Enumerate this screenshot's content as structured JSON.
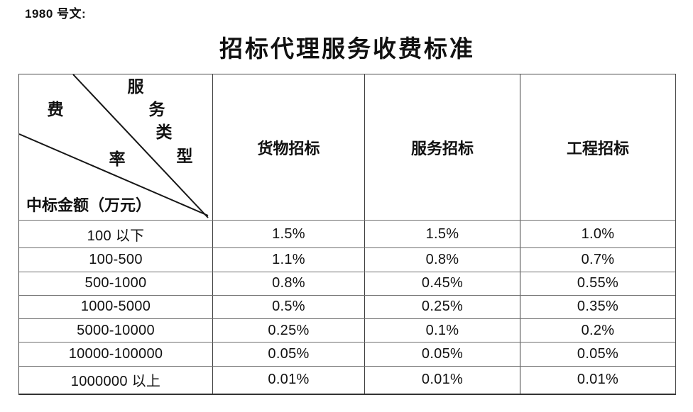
{
  "document": {
    "doc_number_label": "1980 号文:",
    "title": "招标代理服务收费标准"
  },
  "table": {
    "corner": {
      "service_type_chars": [
        "服",
        "务",
        "类",
        "型"
      ],
      "fee_rate_chars": [
        "费",
        "率"
      ],
      "amount_axis_label": "中标金额（万元）"
    },
    "columns": [
      "货物招标",
      "服务招标",
      "工程招标"
    ],
    "rows": [
      {
        "range": "100 以下",
        "values": [
          "1.5%",
          "1.5%",
          "1.0%"
        ]
      },
      {
        "range": "100-500",
        "values": [
          "1.1%",
          "0.8%",
          "0.7%"
        ]
      },
      {
        "range": "500-1000",
        "values": [
          "0.8%",
          "0.45%",
          "0.55%"
        ]
      },
      {
        "range": "1000-5000",
        "values": [
          "0.5%",
          "0.25%",
          "0.35%"
        ]
      },
      {
        "range": "5000-10000",
        "values": [
          "0.25%",
          "0.1%",
          "0.2%"
        ]
      },
      {
        "range": "10000-100000",
        "values": [
          "0.05%",
          "0.05%",
          "0.05%"
        ]
      },
      {
        "range": "1000000 以上",
        "values": [
          "0.01%",
          "0.01%",
          "0.01%"
        ]
      }
    ]
  },
  "colors": {
    "text": "#111111",
    "border_outer": "#4a4a4a",
    "border_vertical": "#3c3c3c",
    "border_horizontal": "#6f6f6f",
    "diagonal_line": "#161616"
  }
}
